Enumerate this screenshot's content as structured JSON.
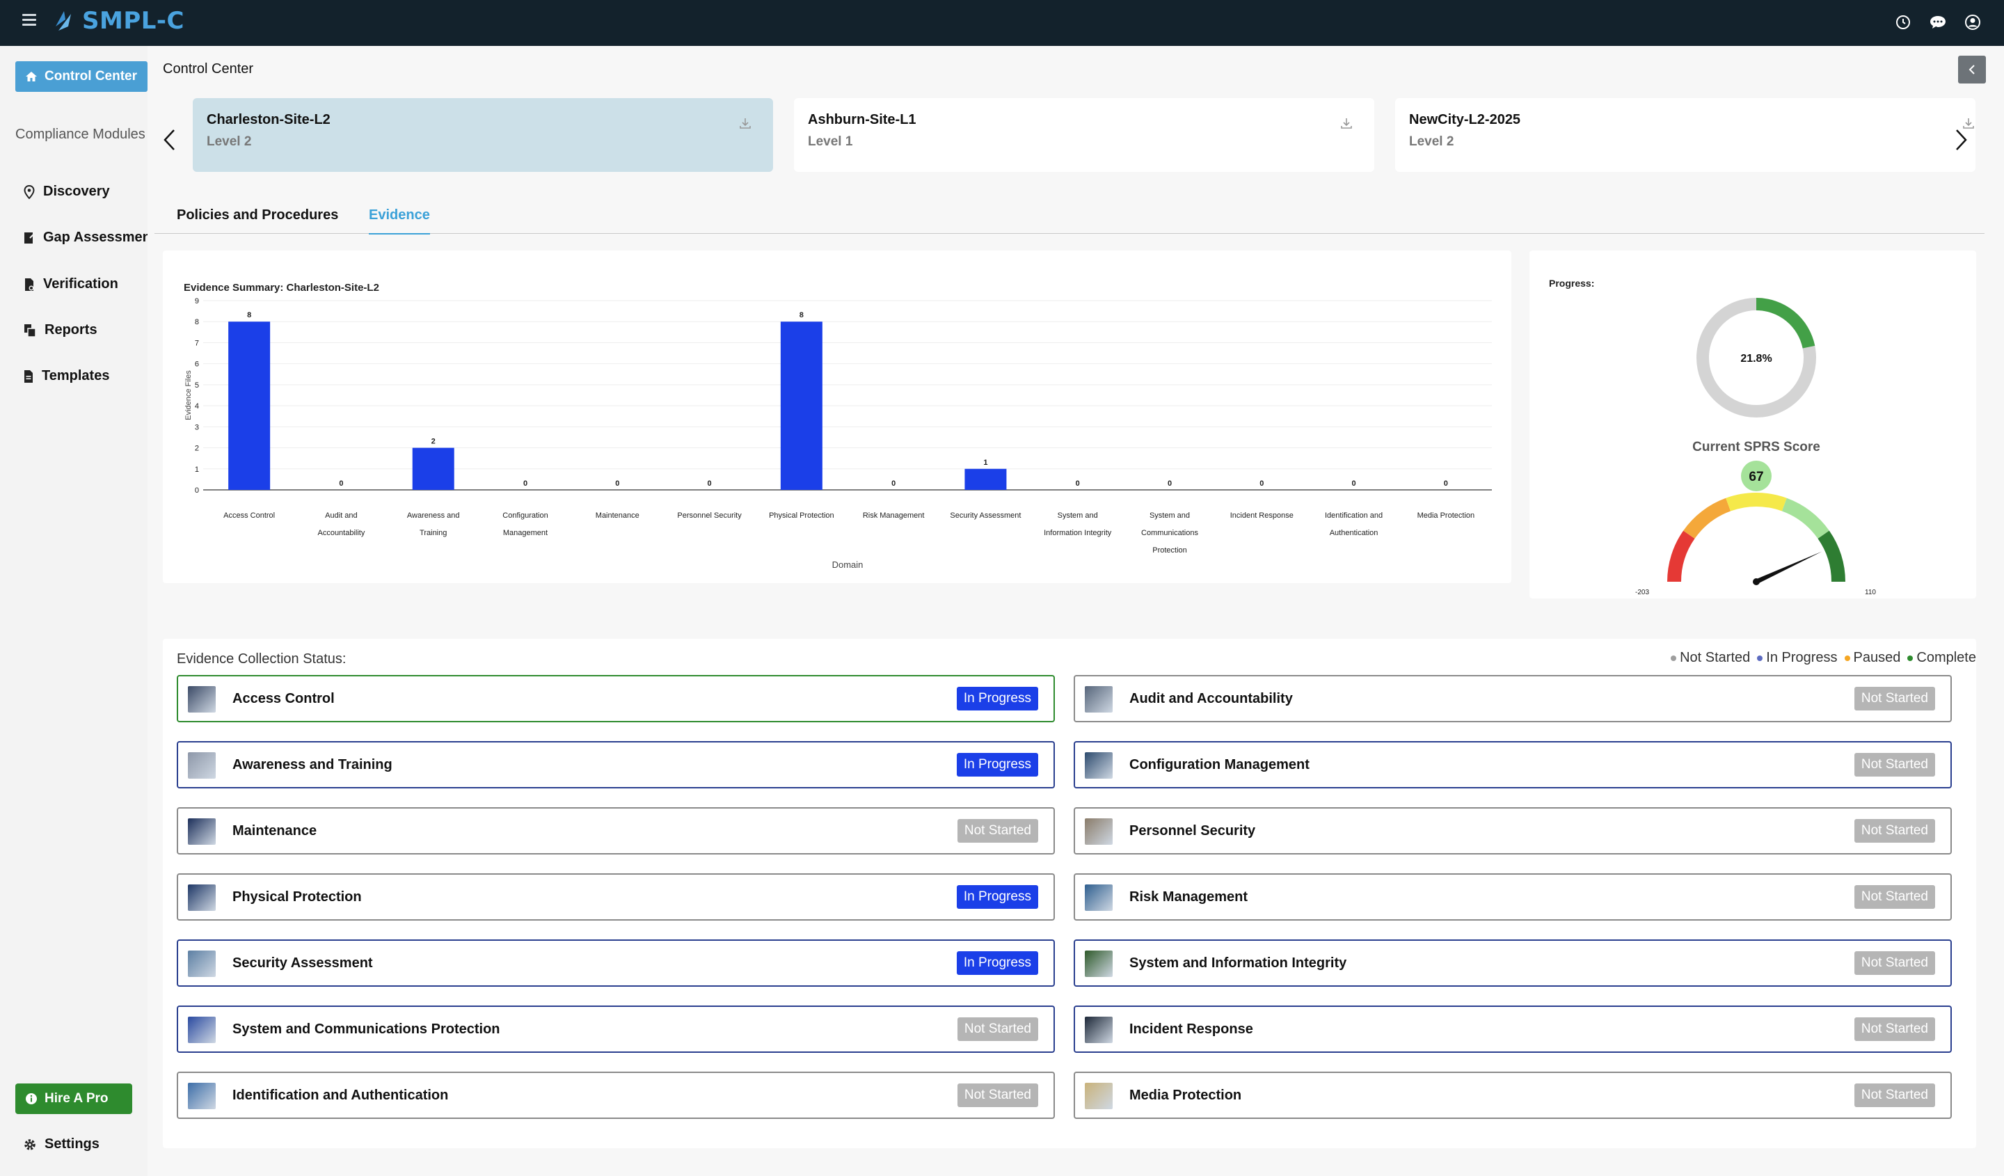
{
  "app": {
    "logo_text": "SMPL-C"
  },
  "topbar": {
    "icons": [
      "history-icon",
      "chat-icon",
      "account-icon"
    ]
  },
  "sidebar": {
    "control_center": "Control Center",
    "section_label": "Compliance Modules",
    "items": [
      {
        "label": "Discovery",
        "icon": "location-pin-icon"
      },
      {
        "label": "Gap Assessment",
        "icon": "clipboard-edit-icon"
      },
      {
        "label": "Verification",
        "icon": "document-check-icon"
      },
      {
        "label": "Reports",
        "icon": "reports-icon"
      },
      {
        "label": "Templates",
        "icon": "template-icon"
      }
    ],
    "hire_pro": "Hire A Pro",
    "settings": "Settings"
  },
  "page": {
    "title": "Control Center"
  },
  "sites": [
    {
      "name": "Charleston-Site-L2",
      "level": "Level 2"
    },
    {
      "name": "Ashburn-Site-L1",
      "level": "Level 1"
    },
    {
      "name": "NewCity-L2-2025",
      "level": "Level 2"
    }
  ],
  "tabs": [
    {
      "label": "Policies and Procedures"
    },
    {
      "label": "Evidence"
    }
  ],
  "chart_data": {
    "type": "bar",
    "title": "Evidence Summary: Charleston-Site-L2",
    "xlabel": "Domain",
    "ylabel": "Evidence Files",
    "ylim": [
      0,
      9
    ],
    "yticks": [
      "0",
      "1",
      "2",
      "3",
      "4",
      "5",
      "6",
      "7",
      "8",
      "9"
    ],
    "categories": [
      [
        "Access Control"
      ],
      [
        "Audit and",
        "Accountability"
      ],
      [
        "Awareness and",
        "Training"
      ],
      [
        "Configuration",
        "Management"
      ],
      [
        "Maintenance"
      ],
      [
        "Personnel Security"
      ],
      [
        "Physical Protection"
      ],
      [
        "Risk Management"
      ],
      [
        "Security Assessment"
      ],
      [
        "System and",
        "Information Integrity"
      ],
      [
        "System and",
        "Communications",
        "Protection"
      ],
      [
        "Incident Response"
      ],
      [
        "Identification and",
        "Authentication"
      ],
      [
        "Media Protection"
      ]
    ],
    "values": [
      8,
      0,
      2,
      0,
      0,
      0,
      8,
      0,
      1,
      0,
      0,
      0,
      0,
      0
    ],
    "color": "#1b3fe8",
    "grid": true
  },
  "progress": {
    "label": "Progress:",
    "percent": 21.8,
    "percent_text": "21.8%",
    "color": "#43a047",
    "track": "#d4d4d4"
  },
  "sprs": {
    "label": "Current SPRS Score",
    "score": 67,
    "score_text": "67",
    "min": -203,
    "max": 110,
    "min_text": "-203",
    "max_text": "110"
  },
  "status": {
    "title": "Evidence Collection Status:",
    "legend": [
      {
        "label": "Not Started",
        "color": "#9e9e9e"
      },
      {
        "label": "In Progress",
        "color": "#5c6bc0"
      },
      {
        "label": "Paused",
        "color": "#f5a623"
      },
      {
        "label": "Complete",
        "color": "#2e8b2e"
      }
    ],
    "items": [
      {
        "name": "Access Control",
        "status": "In Progress",
        "thumb": "#3b4a66"
      },
      {
        "name": "Audit and Accountability",
        "status": "Not Started",
        "thumb": "#56657a"
      },
      {
        "name": "Awareness and Training",
        "status": "In Progress",
        "thumb": "#8d97a8"
      },
      {
        "name": "Configuration Management",
        "status": "Not Started",
        "thumb": "#2d4b6e"
      },
      {
        "name": "Maintenance",
        "status": "Not Started",
        "thumb": "#1c2f5a"
      },
      {
        "name": "Personnel Security",
        "status": "Not Started",
        "thumb": "#8a7c6a"
      },
      {
        "name": "Physical Protection",
        "status": "In Progress",
        "thumb": "#1e3766"
      },
      {
        "name": "Risk Management",
        "status": "Not Started",
        "thumb": "#2f5f8f"
      },
      {
        "name": "Security Assessment",
        "status": "In Progress",
        "thumb": "#5c7fa3"
      },
      {
        "name": "System and Information Integrity",
        "status": "Not Started",
        "thumb": "#2f5a2a"
      },
      {
        "name": "System and Communications Protection",
        "status": "Not Started",
        "thumb": "#2a4aa0"
      },
      {
        "name": "Incident Response",
        "status": "Not Started",
        "thumb": "#1d2838"
      },
      {
        "name": "Identification and Authentication",
        "status": "Not Started",
        "thumb": "#3d6ea8"
      },
      {
        "name": "Media Protection",
        "status": "Not Started",
        "thumb": "#c9b27a"
      }
    ]
  }
}
